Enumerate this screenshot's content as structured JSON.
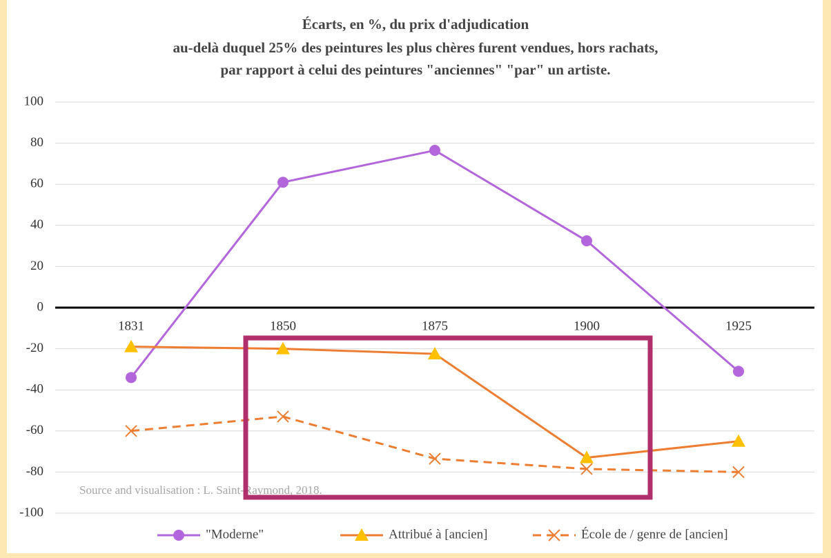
{
  "chart_data": {
    "type": "line",
    "title": [
      "Écarts, en %, du prix d'adjudication",
      "au-delà duquel 25% des peintures les plus chères furent vendues, hors rachats,",
      "par rapport à celui des peintures \"anciennes\" \"par\" un artiste."
    ],
    "categories": [
      "1831",
      "1850",
      "1875",
      "1900",
      "1925"
    ],
    "series": [
      {
        "name": "\"Moderne\"",
        "color": "#b366db",
        "marker": "circle",
        "dash": false,
        "values": [
          -34,
          61,
          76.5,
          32.5,
          -31
        ]
      },
      {
        "name": "Attribué à [ancien]",
        "color": "#ed7d31",
        "marker_color": "#ffc000",
        "marker": "triangle",
        "dash": false,
        "values": [
          -19,
          -20,
          -22.5,
          -73,
          -65
        ]
      },
      {
        "name": "École de / genre de [ancien]",
        "color": "#ed7d31",
        "marker": "x",
        "dash": true,
        "values": [
          -60,
          -53,
          -73.5,
          -78.5,
          -80
        ]
      }
    ],
    "ylim": [
      -100,
      100
    ],
    "yticks": [
      -100,
      -80,
      -60,
      -40,
      -20,
      0,
      20,
      40,
      60,
      80,
      100
    ],
    "grid": true,
    "annotation": "Source and visualisation : L. Saint-Raymond, 2018."
  }
}
